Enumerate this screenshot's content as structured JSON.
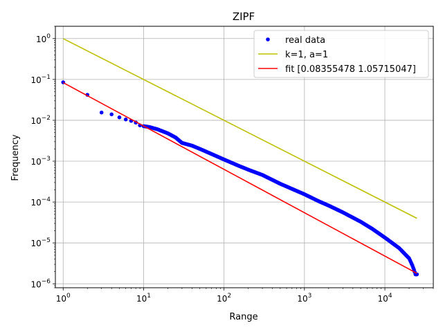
{
  "chart_data": {
    "type": "line",
    "title": "ZIPF",
    "xlabel": "Range",
    "ylabel": "Frequency",
    "xscale": "log",
    "yscale": "log",
    "xlim": [
      0.8,
      40000
    ],
    "ylim": [
      8e-07,
      2.0
    ],
    "grid": true,
    "legend_position": "top-right",
    "x_ticks": [
      {
        "value": 1,
        "mant": "10",
        "exp": "0"
      },
      {
        "value": 10,
        "mant": "10",
        "exp": "1"
      },
      {
        "value": 100,
        "mant": "10",
        "exp": "2"
      },
      {
        "value": 1000,
        "mant": "10",
        "exp": "3"
      },
      {
        "value": 10000,
        "mant": "10",
        "exp": "4"
      }
    ],
    "y_ticks": [
      {
        "value": 1,
        "mant": "10",
        "exp": "0"
      },
      {
        "value": 0.1,
        "mant": "10",
        "exp": "−1"
      },
      {
        "value": 0.01,
        "mant": "10",
        "exp": "−2"
      },
      {
        "value": 0.001,
        "mant": "10",
        "exp": "−3"
      },
      {
        "value": 0.0001,
        "mant": "10",
        "exp": "−4"
      },
      {
        "value": 1e-05,
        "mant": "10",
        "exp": "−5"
      },
      {
        "value": 1e-06,
        "mant": "10",
        "exp": "−6"
      }
    ],
    "series": [
      {
        "name": "real data",
        "kind": "scatter",
        "color": "#0000ff",
        "points": [
          [
            1,
            0.085
          ],
          [
            2,
            0.042
          ],
          [
            3,
            0.0155
          ],
          [
            4,
            0.014
          ],
          [
            5,
            0.0118
          ],
          [
            6,
            0.0105
          ],
          [
            7,
            0.0097
          ],
          [
            8,
            0.0088
          ],
          [
            9,
            0.0075
          ],
          [
            10,
            0.0072
          ],
          [
            12,
            0.0068
          ],
          [
            15,
            0.006
          ],
          [
            20,
            0.0048
          ],
          [
            25,
            0.0038
          ],
          [
            30,
            0.0028
          ],
          [
            40,
            0.0024
          ],
          [
            50,
            0.002
          ],
          [
            70,
            0.0015
          ],
          [
            100,
            0.0011
          ],
          [
            150,
            0.00078
          ],
          [
            200,
            0.00062
          ],
          [
            300,
            0.00046
          ],
          [
            500,
            0.00028
          ],
          [
            700,
            0.00021
          ],
          [
            1000,
            0.000155
          ],
          [
            1500,
            0.000105
          ],
          [
            2000,
            8.2e-05
          ],
          [
            3000,
            5.6e-05
          ],
          [
            5000,
            3.3e-05
          ],
          [
            7000,
            2.2e-05
          ],
          [
            10000,
            1.35e-05
          ],
          [
            15000,
            7.5e-06
          ],
          [
            20000,
            4.2e-06
          ],
          [
            22000,
            2.8e-06
          ],
          [
            23000,
            2.2e-06
          ],
          [
            24000,
            1.7e-06
          ],
          [
            25000,
            1.7e-06
          ]
        ]
      },
      {
        "name": "k=1, a=1",
        "kind": "line",
        "color": "#bfbf00",
        "points": [
          [
            1,
            1.0
          ],
          [
            25000,
            4e-05
          ]
        ]
      },
      {
        "name": "fit [0.08355478 1.05715047]",
        "kind": "line",
        "color": "#ff0000",
        "points": [
          [
            1,
            0.08355478
          ],
          [
            25000,
            1.8e-06
          ]
        ]
      }
    ]
  }
}
